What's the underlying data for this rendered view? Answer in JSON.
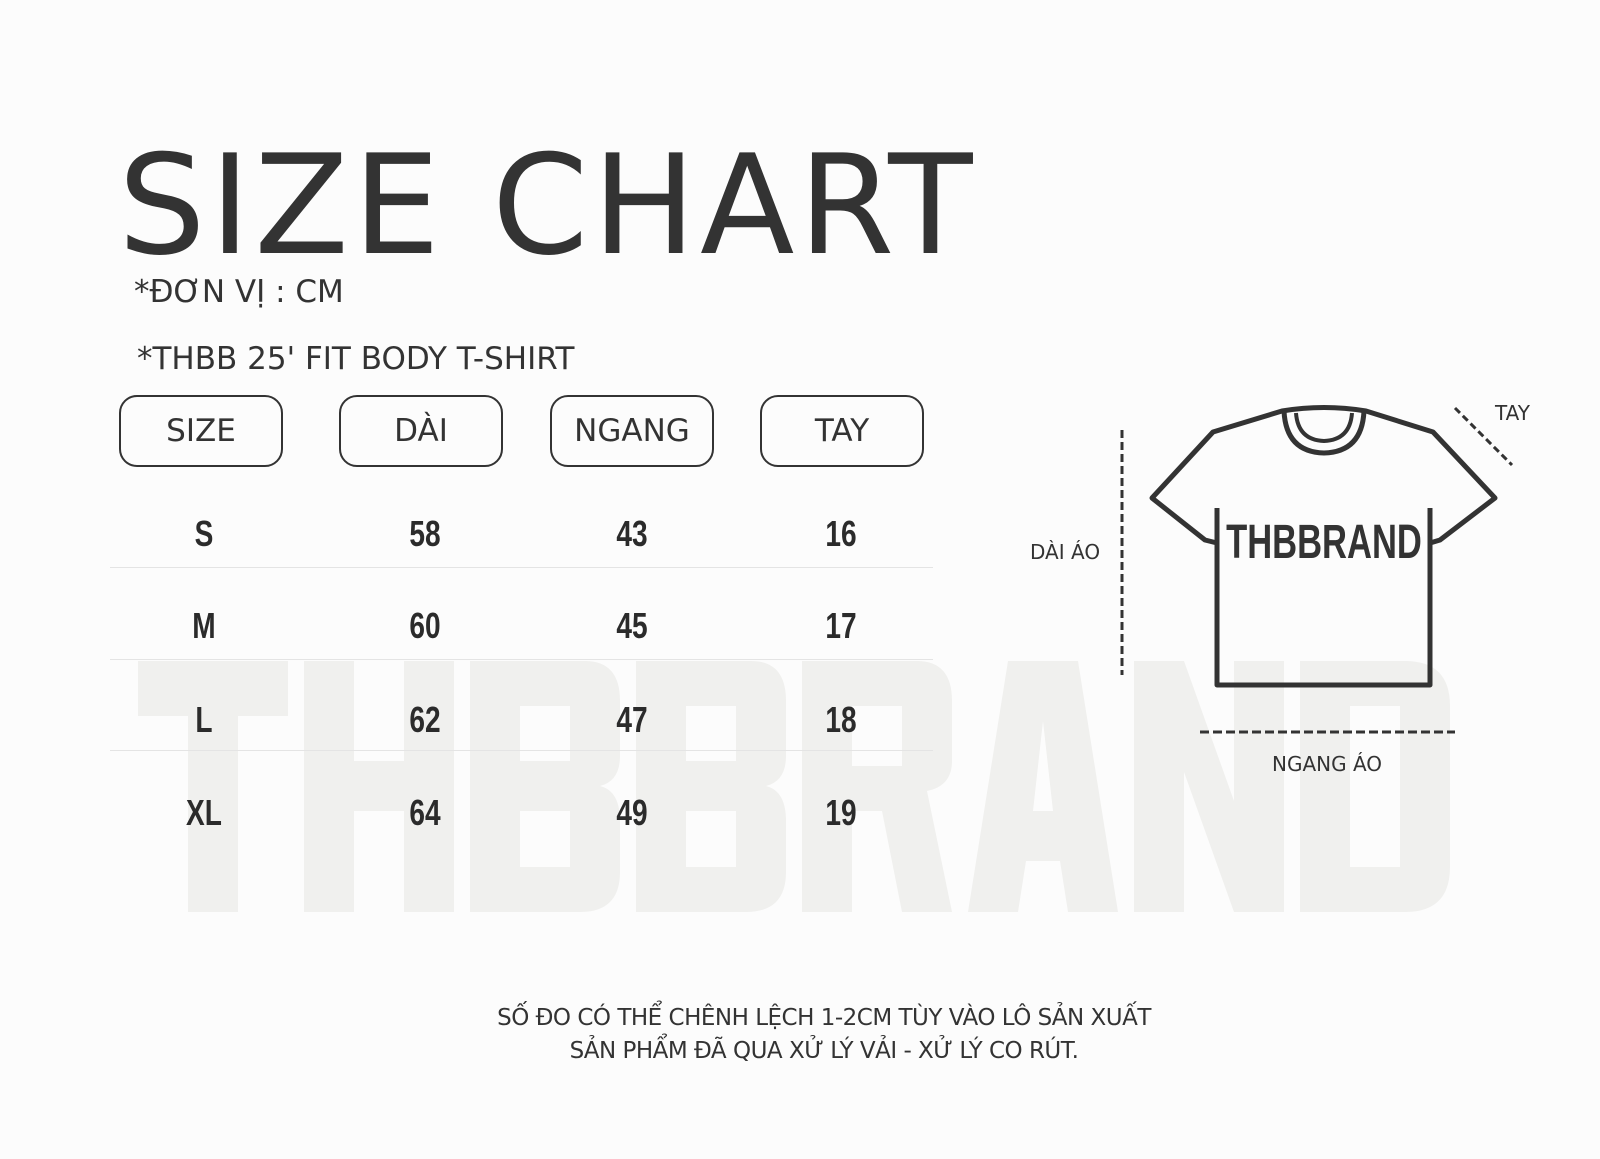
{
  "title": "SIZE CHART",
  "unit_note": "*ĐƠN VỊ : CM",
  "product_note": "*THBB 25' FIT BODY T-SHIRT",
  "watermark": "THBBRAND",
  "table": {
    "headers": [
      "SIZE",
      "DÀI",
      "NGANG",
      "TAY"
    ],
    "rows": [
      [
        "S",
        "58",
        "43",
        "16"
      ],
      [
        "M",
        "60",
        "45",
        "17"
      ],
      [
        "L",
        "62",
        "47",
        "18"
      ],
      [
        "XL",
        "64",
        "49",
        "19"
      ]
    ]
  },
  "diagram": {
    "shirt_print": "THBBRAND",
    "length_label": "DÀI ÁO",
    "width_label": "NGANG ÁO",
    "sleeve_label": "TAY"
  },
  "footer": {
    "line1": "SỐ ĐO CÓ THỂ CHÊNH LỆCH 1-2CM TÙY VÀO LÔ SẢN XUẤT",
    "line2": "SẢN PHẨM ĐÃ QUA XỬ LÝ VẢI - XỬ LÝ CO RÚT."
  },
  "colors": {
    "ink": "#333333",
    "watermark": "#f0f0ee",
    "background": "#fcfcfc"
  }
}
